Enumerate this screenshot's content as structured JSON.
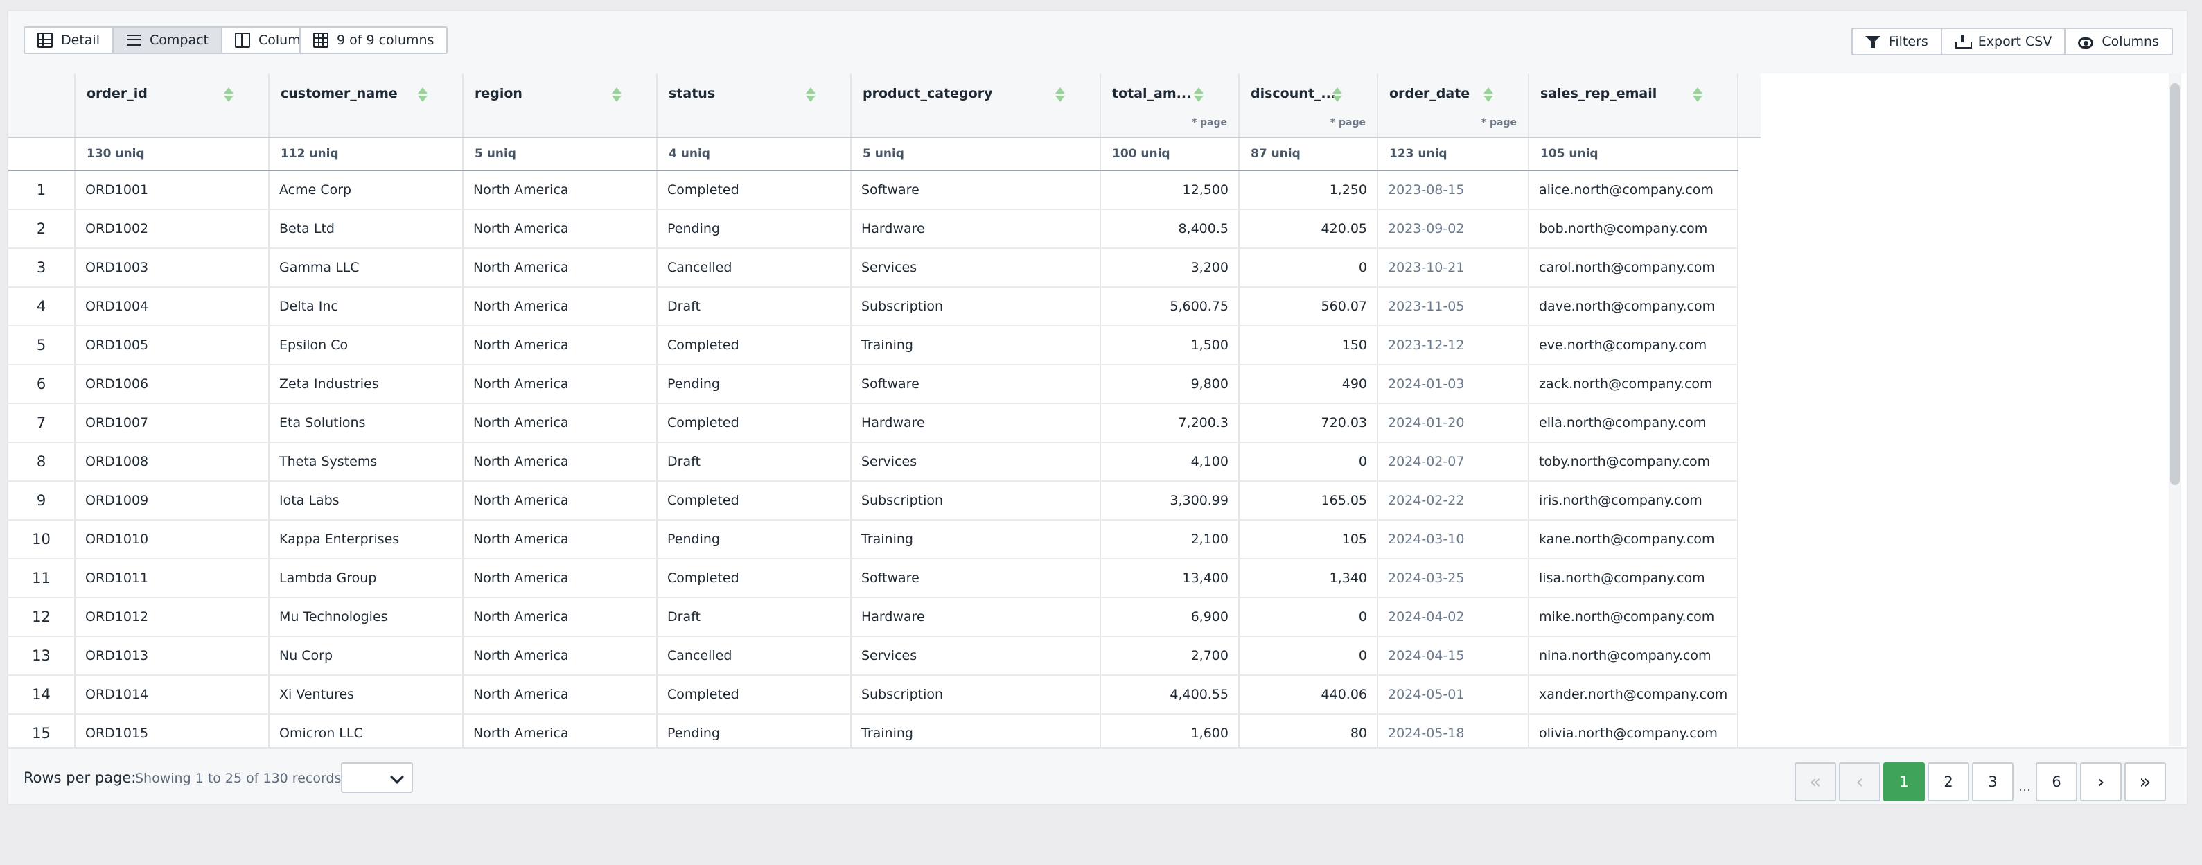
{
  "toolbar": {
    "view_buttons": [
      {
        "label": "Detail",
        "icon": "table-icon",
        "active": false
      },
      {
        "label": "Compact",
        "icon": "lines-icon",
        "active": true
      },
      {
        "label": "Column",
        "icon": "column-icon",
        "active": false
      }
    ],
    "columns_count": "9 of 9 columns",
    "filters_label": "Filters",
    "export_label": "Export CSV",
    "columns_label": "Columns"
  },
  "table": {
    "columns": [
      {
        "key": "order_id",
        "label": "order_id",
        "page": "",
        "uniq": "130 uniq",
        "align": "left"
      },
      {
        "key": "customer_name",
        "label": "customer_name",
        "page": "",
        "uniq": "112 uniq",
        "align": "left"
      },
      {
        "key": "region",
        "label": "region",
        "page": "",
        "uniq": "5 uniq",
        "align": "left"
      },
      {
        "key": "status",
        "label": "status",
        "page": "",
        "uniq": "4 uniq",
        "align": "left"
      },
      {
        "key": "product_category",
        "label": "product_category",
        "page": "",
        "uniq": "5 uniq",
        "align": "left"
      },
      {
        "key": "total_amount",
        "label": "total_am...",
        "page": "* page",
        "uniq": "100 uniq",
        "align": "num"
      },
      {
        "key": "discount",
        "label": "discount_...",
        "page": "* page",
        "uniq": "87 uniq",
        "align": "num"
      },
      {
        "key": "order_date",
        "label": "order_date",
        "page": "* page",
        "uniq": "123 uniq",
        "align": "date"
      },
      {
        "key": "sales_rep_email",
        "label": "sales_rep_email",
        "page": "",
        "uniq": "105 uniq",
        "align": "left"
      }
    ],
    "rows": [
      [
        "1",
        "ORD1001",
        "Acme Corp",
        "North America",
        "Completed",
        "Software",
        "12,500",
        "1,250",
        "2023-08-15",
        "alice.north@company.com"
      ],
      [
        "2",
        "ORD1002",
        "Beta Ltd",
        "North America",
        "Pending",
        "Hardware",
        "8,400.5",
        "420.05",
        "2023-09-02",
        "bob.north@company.com"
      ],
      [
        "3",
        "ORD1003",
        "Gamma LLC",
        "North America",
        "Cancelled",
        "Services",
        "3,200",
        "0",
        "2023-10-21",
        "carol.north@company.com"
      ],
      [
        "4",
        "ORD1004",
        "Delta Inc",
        "North America",
        "Draft",
        "Subscription",
        "5,600.75",
        "560.07",
        "2023-11-05",
        "dave.north@company.com"
      ],
      [
        "5",
        "ORD1005",
        "Epsilon Co",
        "North America",
        "Completed",
        "Training",
        "1,500",
        "150",
        "2023-12-12",
        "eve.north@company.com"
      ],
      [
        "6",
        "ORD1006",
        "Zeta Industries",
        "North America",
        "Pending",
        "Software",
        "9,800",
        "490",
        "2024-01-03",
        "zack.north@company.com"
      ],
      [
        "7",
        "ORD1007",
        "Eta Solutions",
        "North America",
        "Completed",
        "Hardware",
        "7,200.3",
        "720.03",
        "2024-01-20",
        "ella.north@company.com"
      ],
      [
        "8",
        "ORD1008",
        "Theta Systems",
        "North America",
        "Draft",
        "Services",
        "4,100",
        "0",
        "2024-02-07",
        "toby.north@company.com"
      ],
      [
        "9",
        "ORD1009",
        "Iota Labs",
        "North America",
        "Completed",
        "Subscription",
        "3,300.99",
        "165.05",
        "2024-02-22",
        "iris.north@company.com"
      ],
      [
        "10",
        "ORD1010",
        "Kappa Enterprises",
        "North America",
        "Pending",
        "Training",
        "2,100",
        "105",
        "2024-03-10",
        "kane.north@company.com"
      ],
      [
        "11",
        "ORD1011",
        "Lambda Group",
        "North America",
        "Completed",
        "Software",
        "13,400",
        "1,340",
        "2024-03-25",
        "lisa.north@company.com"
      ],
      [
        "12",
        "ORD1012",
        "Mu Technologies",
        "North America",
        "Draft",
        "Hardware",
        "6,900",
        "0",
        "2024-04-02",
        "mike.north@company.com"
      ],
      [
        "13",
        "ORD1013",
        "Nu Corp",
        "North America",
        "Cancelled",
        "Services",
        "2,700",
        "0",
        "2024-04-15",
        "nina.north@company.com"
      ],
      [
        "14",
        "ORD1014",
        "Xi Ventures",
        "North America",
        "Completed",
        "Subscription",
        "4,400.55",
        "440.06",
        "2024-05-01",
        "xander.north@company.com"
      ],
      [
        "15",
        "ORD1015",
        "Omicron LLC",
        "North America",
        "Pending",
        "Training",
        "1,600",
        "80",
        "2024-05-18",
        "olivia.north@company.com"
      ]
    ]
  },
  "footer": {
    "rows_per_page_label": "Rows per page:",
    "showing": "Showing 1 to 25 of 130 records",
    "pages": [
      "1",
      "2",
      "3",
      "6"
    ],
    "current_page": "1",
    "ellipsis": "..."
  },
  "colors": {
    "accent": "#3fa45a",
    "sort_icon": "#9bd29a"
  }
}
